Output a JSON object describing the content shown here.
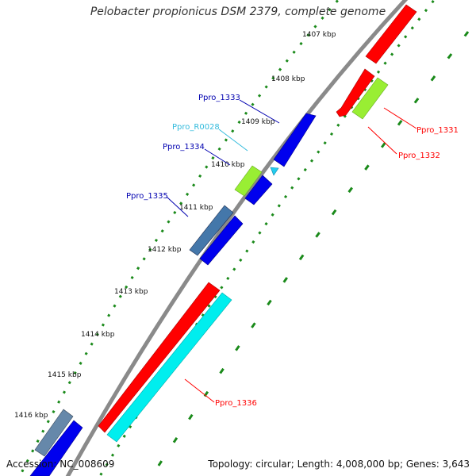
{
  "title": "Pelobacter propionicus DSM 2379, complete genome",
  "footer": {
    "accession_label": "Accession:",
    "accession": "NC_008609",
    "topology_label": "Topology:",
    "topology": "circular",
    "length_label": "Length:",
    "length": "4,008,000 bp",
    "genes_label": "Genes:",
    "genes": "3,643"
  },
  "ticks": [
    "1407 kbp",
    "1408 kbp",
    "1409 kbp",
    "1410 kbp",
    "1411 kbp",
    "1412 kbp",
    "1413 kbp",
    "1414 kbp",
    "1415 kbp",
    "1416 kbp"
  ],
  "gene_labels": [
    {
      "name": "Ppro_1331",
      "color": "#ff0000"
    },
    {
      "name": "Ppro_1332",
      "color": "#ff0000"
    },
    {
      "name": "Ppro_1333",
      "color": "#0000b0"
    },
    {
      "name": "Ppro_R0028",
      "color": "#33bbdd"
    },
    {
      "name": "Ppro_1334",
      "color": "#0000b0"
    },
    {
      "name": "Ppro_1335",
      "color": "#0000b0"
    },
    {
      "name": "Ppro_1336",
      "color": "#ff0000"
    }
  ],
  "colors": {
    "backbone": "#888888",
    "dots": "#1a8a1a",
    "forward_red": "#ff0000",
    "reverse_blue": "#0000ee",
    "rna_cyan": "#00eeee",
    "pseudo_green": "#99ee33",
    "steel_blue": "#4477aa"
  }
}
